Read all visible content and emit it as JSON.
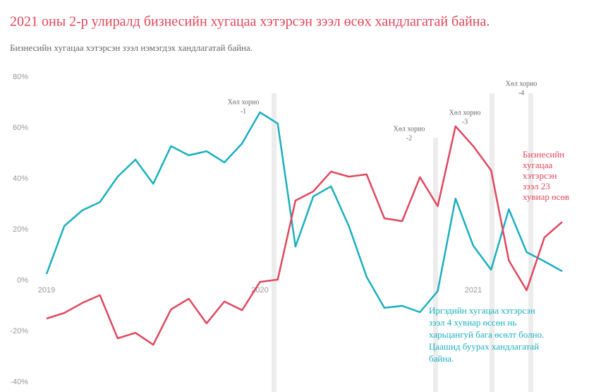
{
  "chart_data": {
    "type": "line",
    "title": "2021 оны 2-р улиралд бизнесийн хугацаа хэтэрсэн зээл өсөх хандлагатай байна.",
    "subtitle": "Бизнесийн хугацаа хэтэрсэн зээл нэмэгдэх хандлагатай байна.",
    "categories": [
      "2019",
      null,
      null,
      null,
      null,
      null,
      null,
      null,
      null,
      null,
      null,
      null,
      "2020",
      null,
      null,
      null,
      null,
      null,
      null,
      null,
      null,
      null,
      null,
      null,
      "2021",
      null,
      null,
      null,
      null,
      null
    ],
    "series": [
      {
        "color": "#1aafc0",
        "values": [
          2.5,
          21.4,
          27.5,
          30.8,
          40.8,
          47.5,
          38,
          52.8,
          49.2,
          50.8,
          46.4,
          53.9,
          66.1,
          61.7,
          13.3,
          33,
          37,
          21.4,
          1.4,
          -10.8,
          -10,
          -12.5,
          -4.2,
          32.2,
          13.6,
          4.2,
          28,
          11.1,
          7.5,
          3.6
        ]
      },
      {
        "color": "#e0475f",
        "values": [
          -15,
          -12.8,
          -8.9,
          -5.8,
          -22.8,
          -20.6,
          -25.3,
          -11.4,
          -7.2,
          -16.9,
          -8.3,
          -11.7,
          -0.6,
          0.3,
          31.4,
          35,
          42.8,
          40.8,
          41.7,
          24.4,
          23.3,
          40.6,
          29.2,
          60.6,
          52.8,
          43.3,
          7.8,
          -3.9,
          16.9,
          23
        ]
      }
    ],
    "ylim": [
      -40,
      80
    ],
    "yticks": [
      {
        "value": -40,
        "label": "-40%"
      },
      {
        "value": -20,
        "label": "-20%"
      },
      {
        "value": 0,
        "label": "0%"
      },
      {
        "value": 20,
        "label": "20%"
      },
      {
        "value": 40,
        "label": "40%"
      },
      {
        "value": 60,
        "label": "60%"
      },
      {
        "value": 80,
        "label": "80%"
      }
    ],
    "grid": false,
    "annotations": [
      {
        "lines": [
          "Хөл хорио",
          "-1"
        ]
      },
      {
        "lines": [
          "Хөл хорио",
          "-2"
        ]
      },
      {
        "lines": [
          "Хөл хорио",
          "-3"
        ]
      },
      {
        "lines": [
          "Хөл хорио",
          "-4"
        ]
      },
      {
        "lines": [
          "Бизнесийн",
          "хугацаа",
          "хэтэрсэн",
          "зээл 23",
          "хувиар өсөв"
        ]
      },
      {
        "lines": [
          "Иргэдийн хугацаа хэтэрсэн",
          "зээл 4 хувиар өссөн нь",
          "харьцангуй бага өсөлт болно.",
          "Цаашид буурах хандлагатай",
          "байна."
        ]
      }
    ]
  }
}
